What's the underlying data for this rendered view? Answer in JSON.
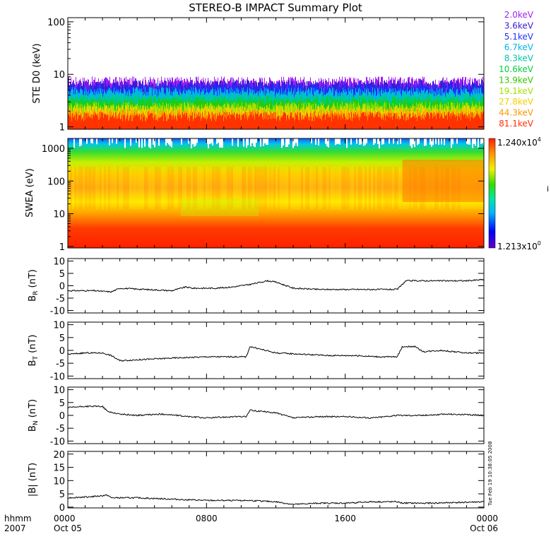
{
  "title": "STEREO-B IMPACT Summary Plot",
  "timestamp_vertical": "Tue Feb 19 10:38:05 2008",
  "time_axis": {
    "corner_labels": [
      "hhmm",
      "2007"
    ],
    "ticks": [
      {
        "label": "0000",
        "sub": "Oct 05",
        "hour": 0
      },
      {
        "label": "0800",
        "sub": "",
        "hour": 8
      },
      {
        "label": "1600",
        "sub": "",
        "hour": 16
      },
      {
        "label": "0000",
        "sub": "Oct 06",
        "hour": 24
      }
    ]
  },
  "colorbar": {
    "max_label": "1.240x10",
    "max_exp": "4",
    "min_label": "1.213x10",
    "min_exp": "0",
    "unit_hint": "i"
  },
  "colors": {
    "ste_channels": [
      "#a020f0",
      "#3a1ad8",
      "#1e32ff",
      "#00b4e6",
      "#00c8aa",
      "#00d23c",
      "#32c800",
      "#a0e000",
      "#f0d200",
      "#ff9600",
      "#ff3200"
    ]
  },
  "chart_data": [
    {
      "type": "bar",
      "panel": "ste",
      "ylabel": "STE D0 (keV)",
      "yscale": "log",
      "ylim": [
        0.9,
        120
      ],
      "yticks": [
        1,
        10,
        100
      ],
      "xlim_hours": [
        0,
        24
      ],
      "legend_position": "right",
      "series": [
        {
          "name": "2.0keV",
          "level": 7.0
        },
        {
          "name": "3.6keV",
          "level": 6.0
        },
        {
          "name": "5.1keV",
          "level": 5.2
        },
        {
          "name": "6.7keV",
          "level": 4.4
        },
        {
          "name": "8.3keV",
          "level": 3.6
        },
        {
          "name": "10.6keV",
          "level": 3.0
        },
        {
          "name": "13.9keV",
          "level": 2.6
        },
        {
          "name": "19.1keV",
          "level": 2.3
        },
        {
          "name": "27.8keV",
          "level": 2.0
        },
        {
          "name": "44.3keV",
          "level": 1.7
        },
        {
          "name": "81.1keV",
          "level": 1.5
        }
      ]
    },
    {
      "type": "heatmap",
      "panel": "swea",
      "ylabel": "SWEA (eV)",
      "yscale": "log",
      "ylim": [
        0.9,
        2000
      ],
      "yticks": [
        1,
        10,
        100,
        1000
      ],
      "xlim_hours": [
        0,
        24
      ],
      "zrange": [
        1.213,
        12400
      ],
      "colormap": "rainbow"
    },
    {
      "type": "line",
      "panel": "br",
      "ylabel": "B_R (nT)",
      "ylim": [
        -11,
        11
      ],
      "yticks": [
        -10,
        -5,
        0,
        5,
        10
      ],
      "x": [
        0,
        1.5,
        2.5,
        3.0,
        4.5,
        6.0,
        6.8,
        7.2,
        8.5,
        9.5,
        10.5,
        11.5,
        12.0,
        13.0,
        14.5,
        16.0,
        17.5,
        19.0,
        19.5,
        20.5,
        22.0,
        23.0,
        24.0
      ],
      "values": [
        -2,
        -2,
        -2.5,
        -1,
        -1.5,
        -2,
        -0.5,
        -1,
        -1,
        -0.5,
        0.5,
        2,
        1.5,
        -1,
        -1.5,
        -1.5,
        -1.5,
        -1.5,
        2,
        2,
        2,
        2,
        2.5
      ]
    },
    {
      "type": "line",
      "panel": "bt",
      "ylabel": "B_T (nT)",
      "ylim": [
        -11,
        11
      ],
      "yticks": [
        -10,
        -5,
        0,
        5,
        10
      ],
      "x": [
        0,
        1.0,
        2.0,
        2.5,
        3.0,
        4.5,
        6.0,
        8.0,
        9.5,
        10.3,
        10.5,
        12.0,
        13.5,
        15.0,
        16.5,
        18.0,
        19.0,
        19.3,
        20.0,
        20.5,
        21.5,
        23.0,
        24.0
      ],
      "values": [
        -1.5,
        -1,
        -1,
        -2,
        -4,
        -3.5,
        -3,
        -2.5,
        -2.5,
        -2.5,
        1.5,
        -1,
        -1.5,
        -2,
        -2,
        -2.5,
        -2.5,
        1.5,
        1.5,
        -0.5,
        0,
        -1,
        -1
      ]
    },
    {
      "type": "line",
      "panel": "bn",
      "ylabel": "B_N (nT)",
      "ylim": [
        -11,
        11
      ],
      "yticks": [
        -10,
        -5,
        0,
        5,
        10
      ],
      "x": [
        0,
        1.0,
        2.0,
        2.3,
        3.0,
        4.0,
        5.5,
        7.0,
        8.0,
        9.5,
        10.3,
        10.5,
        12.0,
        13.0,
        14.5,
        16.0,
        17.5,
        19.0,
        20.5,
        22.0,
        24.0
      ],
      "values": [
        3,
        3.5,
        3.5,
        1.5,
        0.5,
        0,
        0.5,
        -0.5,
        -1,
        -0.5,
        -0.5,
        2,
        1,
        -1,
        -0.5,
        -0.5,
        -1,
        0,
        0,
        0.5,
        0
      ]
    },
    {
      "type": "line",
      "panel": "bmag",
      "ylabel": "|B| (nT)",
      "ylim": [
        -0.3,
        21
      ],
      "yticks": [
        0,
        5,
        10,
        15,
        20
      ],
      "x": [
        0,
        1.5,
        2.3,
        2.5,
        4.0,
        6.0,
        8.0,
        10.5,
        12.0,
        13.0,
        14.5,
        16.0,
        17.5,
        19.0,
        19.3,
        21.0,
        24.0
      ],
      "values": [
        3.5,
        4,
        4.5,
        3.5,
        3.5,
        3,
        2.5,
        2.5,
        2,
        1,
        1.5,
        1.5,
        2,
        2,
        1.5,
        1.5,
        2
      ]
    }
  ]
}
